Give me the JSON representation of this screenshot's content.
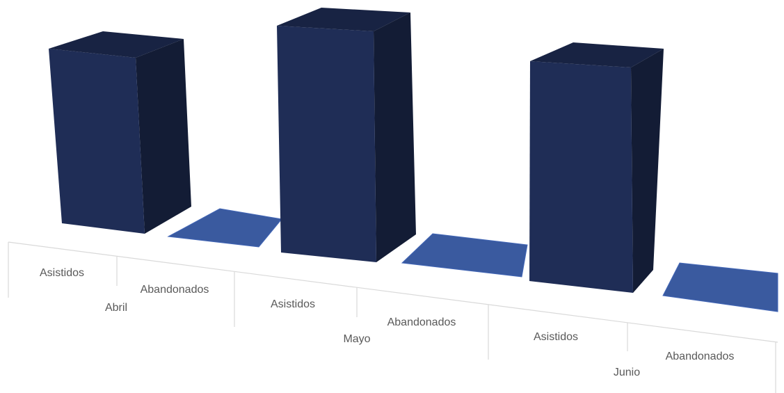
{
  "chart_data": {
    "type": "bar",
    "style": "3d-column",
    "groups": [
      "Abril",
      "Mayo",
      "Junio"
    ],
    "categories": [
      "Asistidos",
      "Abandonados",
      "Asistidos",
      "Abandonados",
      "Asistidos",
      "Abandonados"
    ],
    "values": [
      100,
      0,
      100,
      0,
      100,
      0
    ],
    "colors": {
      "Asistidos": "#1f2d56",
      "Abandonados": "#3a5a9f"
    },
    "grid": false,
    "legend": "none"
  }
}
